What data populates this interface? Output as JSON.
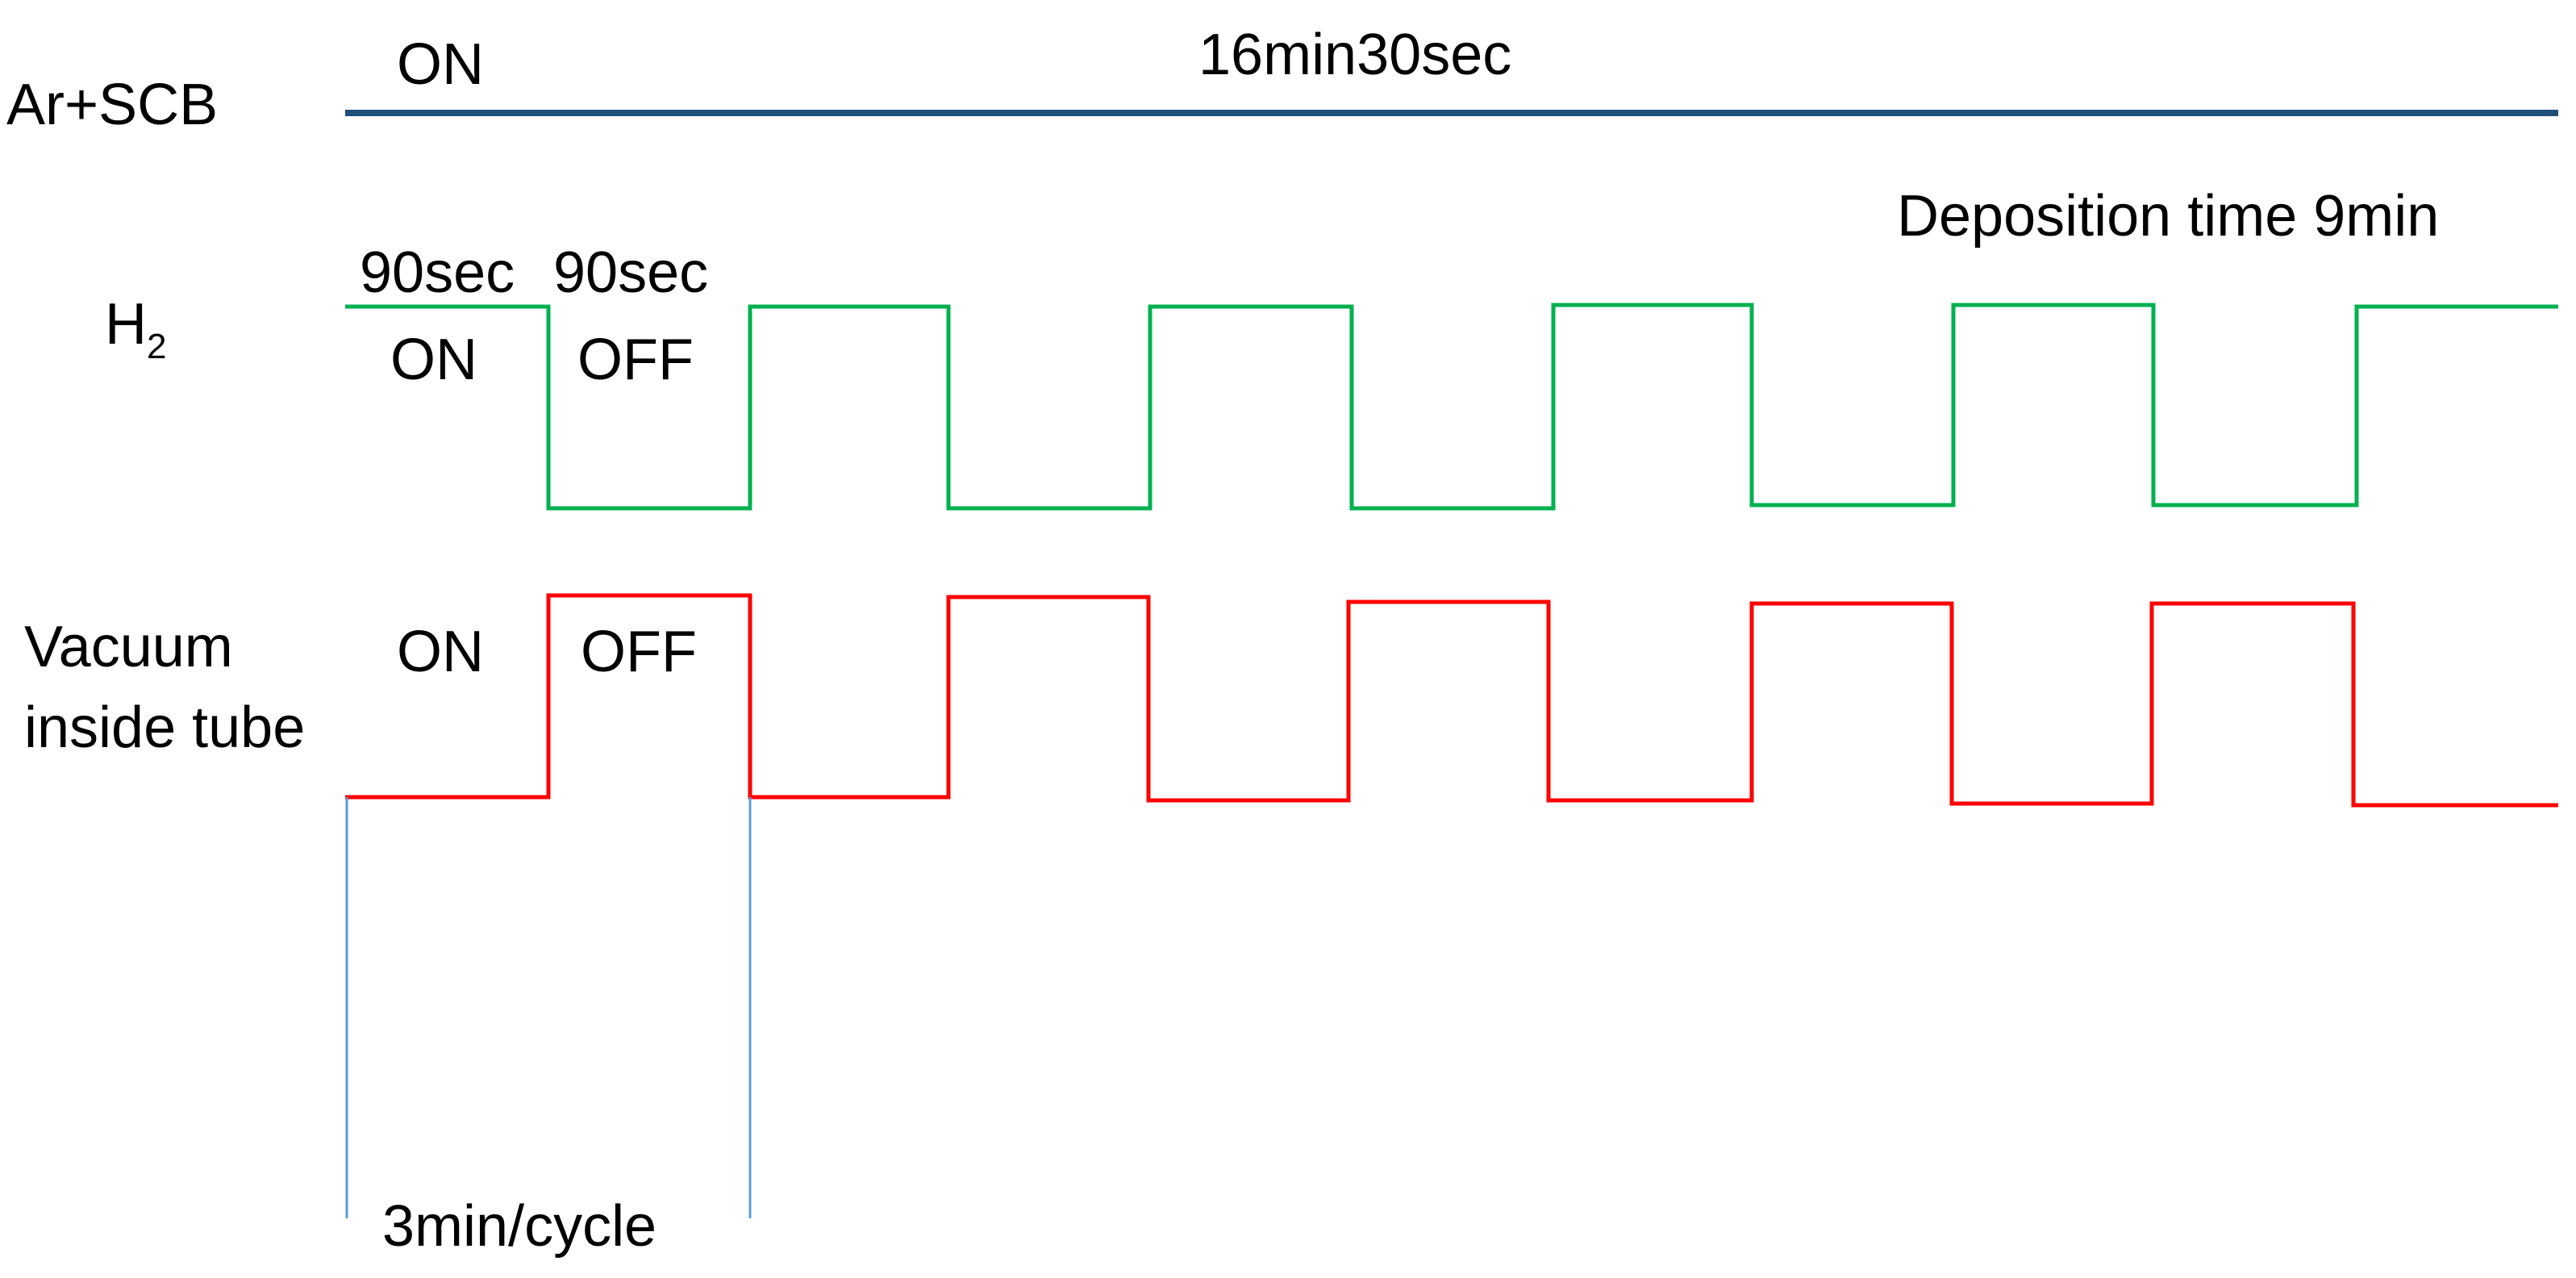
{
  "rows": {
    "ar_scb": {
      "label": "Ar+SCB",
      "state": "ON",
      "duration": "16min30sec"
    },
    "h2": {
      "label_base": "H",
      "label_sub": "2",
      "on_duration": "90sec",
      "off_duration": "90sec",
      "on_label": "ON",
      "off_label": "OFF",
      "deposition_time": "Deposition time 9min"
    },
    "vacuum": {
      "label_line1": "Vacuum",
      "label_line2": "inside tube",
      "on_label": "ON",
      "off_label": "OFF"
    }
  },
  "cycle_label": "3min/cycle",
  "colors": {
    "ar_scb_line": "#1f4e79",
    "h2_line": "#00b050",
    "vacuum_line": "#ff0000",
    "cycle_marker": "#5b9bd5",
    "text": "#000000"
  }
}
